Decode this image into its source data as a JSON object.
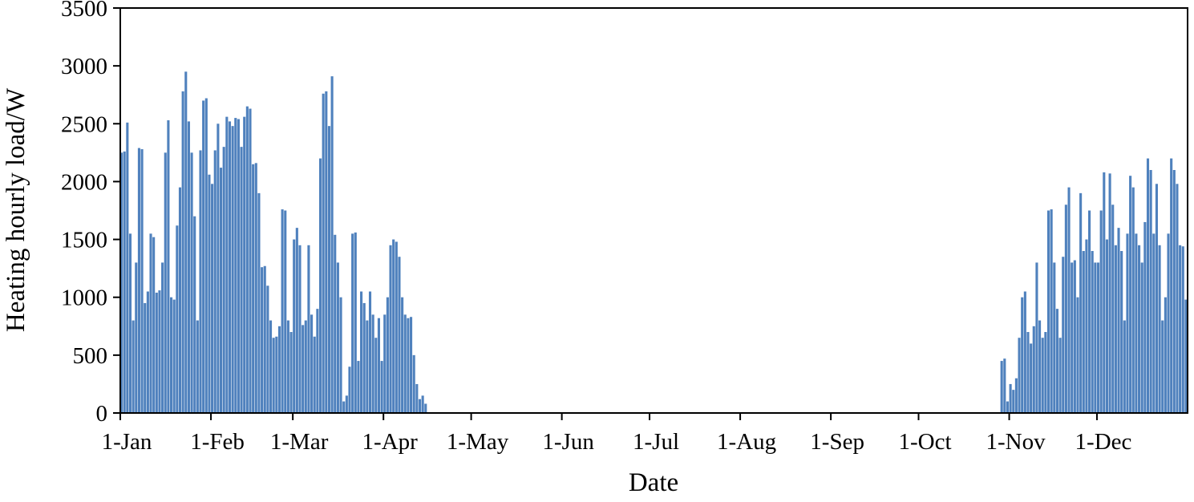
{
  "chart_data": {
    "type": "bar",
    "title": "",
    "xlabel": "Date",
    "ylabel": "Heating hourly load/W",
    "bar_color": "#4f81bd",
    "axis_color": "#000000",
    "background": "#ffffff",
    "grid": false,
    "legend": "none",
    "ylim": [
      0,
      3500
    ],
    "y_ticks": [
      0,
      500,
      1000,
      1500,
      2000,
      2500,
      3000,
      3500
    ],
    "x_tick_labels": [
      "1-Jan",
      "1-Feb",
      "1-Mar",
      "1-Apr",
      "1-May",
      "1-Jun",
      "1-Jul",
      "1-Aug",
      "1-Sep",
      "1-Oct",
      "1-Nov",
      "1-Dec"
    ],
    "x_tick_days": [
      0,
      31,
      59,
      90,
      120,
      151,
      181,
      212,
      243,
      273,
      304,
      334
    ],
    "x_unit": "day-of-year",
    "days_total": 365,
    "values": [
      2250,
      2260,
      2510,
      1550,
      800,
      1300,
      2290,
      2280,
      950,
      1050,
      1550,
      1520,
      1040,
      1060,
      1300,
      2250,
      2530,
      1000,
      980,
      1620,
      1950,
      2780,
      2950,
      2520,
      2250,
      1700,
      800,
      2270,
      2700,
      2720,
      2060,
      1980,
      2270,
      2500,
      2120,
      2300,
      2560,
      2520,
      2480,
      2550,
      2540,
      2300,
      2560,
      2650,
      2630,
      2150,
      2160,
      1900,
      1260,
      1270,
      1100,
      800,
      650,
      660,
      750,
      1760,
      1750,
      800,
      700,
      1500,
      1600,
      1450,
      760,
      800,
      1450,
      850,
      660,
      900,
      2200,
      2760,
      2780,
      2480,
      2910,
      1540,
      1300,
      1000,
      100,
      150,
      400,
      1550,
      1560,
      450,
      1050,
      950,
      800,
      1050,
      850,
      650,
      820,
      450,
      850,
      1000,
      1450,
      1500,
      1480,
      1350,
      1000,
      850,
      820,
      830,
      500,
      250,
      120,
      150,
      80,
      0,
      0,
      0,
      0,
      0,
      0,
      0,
      0,
      0,
      0,
      0,
      0,
      0,
      0,
      0,
      0,
      0,
      0,
      0,
      0,
      0,
      0,
      0,
      0,
      0,
      0,
      0,
      0,
      0,
      0,
      0,
      0,
      0,
      0,
      0,
      0,
      0,
      0,
      0,
      0,
      0,
      0,
      0,
      0,
      0,
      0,
      0,
      0,
      0,
      0,
      0,
      0,
      0,
      0,
      0,
      0,
      0,
      0,
      0,
      0,
      0,
      0,
      0,
      0,
      0,
      0,
      0,
      0,
      0,
      0,
      0,
      0,
      0,
      0,
      0,
      0,
      0,
      0,
      0,
      0,
      0,
      0,
      0,
      0,
      0,
      0,
      0,
      0,
      0,
      0,
      0,
      0,
      0,
      0,
      0,
      0,
      0,
      0,
      0,
      0,
      0,
      0,
      0,
      0,
      0,
      0,
      0,
      0,
      0,
      0,
      0,
      0,
      0,
      0,
      0,
      0,
      0,
      0,
      0,
      0,
      0,
      0,
      0,
      0,
      0,
      0,
      0,
      0,
      0,
      0,
      0,
      0,
      0,
      0,
      0,
      0,
      0,
      0,
      0,
      0,
      0,
      0,
      0,
      0,
      0,
      0,
      0,
      0,
      0,
      0,
      0,
      0,
      0,
      0,
      0,
      0,
      0,
      0,
      0,
      0,
      0,
      0,
      0,
      0,
      0,
      0,
      0,
      0,
      0,
      0,
      0,
      0,
      0,
      0,
      0,
      0,
      0,
      0,
      0,
      0,
      0,
      0,
      0,
      0,
      0,
      0,
      0,
      0,
      0,
      0,
      0,
      0,
      0,
      0,
      0,
      0,
      450,
      470,
      100,
      250,
      200,
      300,
      650,
      1000,
      1050,
      700,
      600,
      750,
      1300,
      800,
      650,
      700,
      1750,
      1760,
      1300,
      900,
      650,
      1350,
      1800,
      1950,
      1300,
      1320,
      1000,
      1900,
      1400,
      1500,
      1750,
      1400,
      1300,
      1300,
      1750,
      2080,
      1500,
      2070,
      1800,
      1450,
      1600,
      1400,
      800,
      1550,
      2050,
      1950,
      1550,
      1450,
      1300,
      1650,
      2200,
      2100,
      1550,
      1980,
      1450,
      800,
      1000,
      1550,
      2200,
      2100,
      1980,
      1450,
      1440,
      980
    ]
  }
}
